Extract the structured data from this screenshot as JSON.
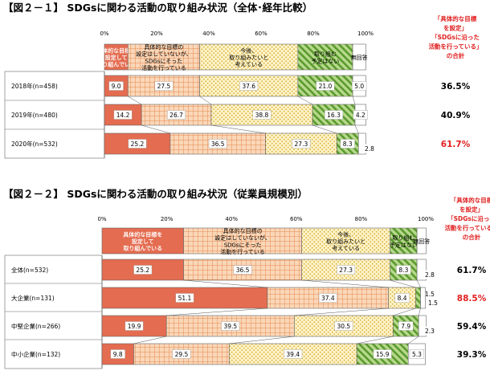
{
  "colors": {
    "s0": "#e46c50",
    "s0_stroke": "#c0504d",
    "s1": "#fad7b8",
    "s1_grid": "#e68a4f",
    "s2": "#fdf3c9",
    "s2_dot": "#d9b23a",
    "s3": "#b7d98c",
    "s3_stripe": "#5a9a2e",
    "s4": "#ffffff",
    "border": "#666666",
    "highlight": "#e02020",
    "text": "#000000"
  },
  "shared": {
    "x_ticks": [
      "0%",
      "20%",
      "40%",
      "60%",
      "80%",
      "100%"
    ],
    "legend": [
      [
        "具体的な目標を",
        "設定して",
        "取り組んでいる"
      ],
      [
        "具体的な目標の",
        "設定はしていないが、",
        "SDGsにそった",
        "活動を行っている"
      ],
      [
        "今後、",
        "取り組みたいと",
        "考えている"
      ],
      [
        "取り組む",
        "予定はない"
      ],
      [
        "無回答"
      ]
    ],
    "side_note": [
      "「具体的な目標",
      "を設定」",
      "「SDGsに沿った",
      "活動を行っている」",
      "の合計"
    ]
  },
  "chart_data": [
    {
      "type": "bar",
      "orientation": "horizontal",
      "stacked": "percent",
      "title": "【図２－１】 SDGsに関わる活動の取り組み状況（全体･経年比較）",
      "xlim": [
        0,
        100
      ],
      "legend_position": "top",
      "categories": [
        "2018年(n=458)",
        "2019年(n=480)",
        "2020年(n=532)"
      ],
      "series": [
        {
          "name": "具体的な目標を設定して取り組んでいる",
          "values": [
            9.0,
            14.2,
            25.2
          ]
        },
        {
          "name": "具体的な目標の設定はしていないが、SDGsにそった活動を行っている",
          "values": [
            27.5,
            26.7,
            36.5
          ]
        },
        {
          "name": "今後、取り組みたいと考えている",
          "values": [
            37.6,
            38.8,
            27.3
          ]
        },
        {
          "name": "取り組む予定はない",
          "values": [
            21.0,
            16.3,
            8.3
          ]
        },
        {
          "name": "無回答",
          "values": [
            5.0,
            4.2,
            2.8
          ]
        }
      ],
      "totals": [
        "36.5%",
        "40.9%",
        "61.7%"
      ],
      "highlight_totals": [
        false,
        false,
        true
      ]
    },
    {
      "type": "bar",
      "orientation": "horizontal",
      "stacked": "percent",
      "title": "【図２－２】 SDGsに関わる活動の取り組み状況（従業員規模別）",
      "xlim": [
        0,
        100
      ],
      "legend_position": "top",
      "categories": [
        "全体(n=532)",
        "大企業(n=131)",
        "中堅企業(n=266)",
        "中小企業(n=132)"
      ],
      "series": [
        {
          "name": "具体的な目標を設定して取り組んでいる",
          "values": [
            25.2,
            51.1,
            19.9,
            9.8
          ]
        },
        {
          "name": "具体的な目標の設定はしていないが、SDGsにそった活動を行っている",
          "values": [
            36.5,
            37.4,
            39.5,
            29.5
          ]
        },
        {
          "name": "今後、取り組みたいと考えている",
          "values": [
            27.3,
            8.4,
            30.5,
            39.4
          ]
        },
        {
          "name": "取り組む予定はない",
          "values": [
            8.3,
            1.5,
            7.9,
            15.9
          ]
        },
        {
          "name": "無回答",
          "values": [
            2.8,
            1.5,
            2.3,
            5.3
          ]
        }
      ],
      "totals": [
        "61.7%",
        "88.5%",
        "59.4%",
        "39.3%"
      ],
      "highlight_totals": [
        false,
        true,
        false,
        false
      ]
    }
  ]
}
